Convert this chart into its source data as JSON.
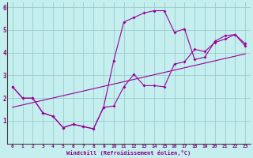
{
  "xlabel": "Windchill (Refroidissement éolien,°C)",
  "bg_color": "#c5eeee",
  "line_color": "#990099",
  "grid_color": "#99cccc",
  "xlim": [
    -0.5,
    23.5
  ],
  "ylim": [
    0.0,
    6.2
  ],
  "xticks": [
    0,
    1,
    2,
    3,
    4,
    5,
    6,
    7,
    8,
    9,
    10,
    11,
    12,
    13,
    14,
    15,
    16,
    17,
    18,
    19,
    20,
    21,
    22,
    23
  ],
  "yticks": [
    1,
    2,
    3,
    4,
    5,
    6
  ],
  "ylabel_6_pos": 6,
  "line1_x": [
    0,
    1,
    2,
    3,
    4,
    5,
    6,
    7,
    8,
    9,
    10,
    11,
    12,
    13,
    14,
    15,
    16,
    17,
    18,
    19,
    20,
    21,
    22,
    23
  ],
  "line1_y": [
    2.5,
    2.0,
    2.0,
    1.35,
    1.2,
    0.7,
    0.85,
    0.75,
    0.65,
    1.6,
    1.65,
    2.5,
    3.05,
    2.55,
    2.55,
    2.5,
    3.5,
    3.6,
    4.15,
    4.05,
    4.45,
    4.6,
    4.8,
    4.4
  ],
  "line2_x": [
    0,
    1,
    2,
    3,
    4,
    5,
    6,
    7,
    8,
    9,
    10,
    11,
    12,
    13,
    14,
    15,
    16,
    17,
    18,
    19,
    20,
    21,
    22,
    23
  ],
  "line2_y": [
    2.5,
    2.0,
    2.0,
    1.35,
    1.2,
    0.7,
    0.85,
    0.75,
    0.65,
    1.6,
    3.65,
    5.35,
    5.55,
    5.75,
    5.85,
    5.85,
    4.9,
    5.05,
    3.7,
    3.8,
    4.5,
    4.75,
    4.8,
    4.3
  ],
  "line3_x": [
    0,
    23
  ],
  "line3_y": [
    1.6,
    3.95
  ]
}
